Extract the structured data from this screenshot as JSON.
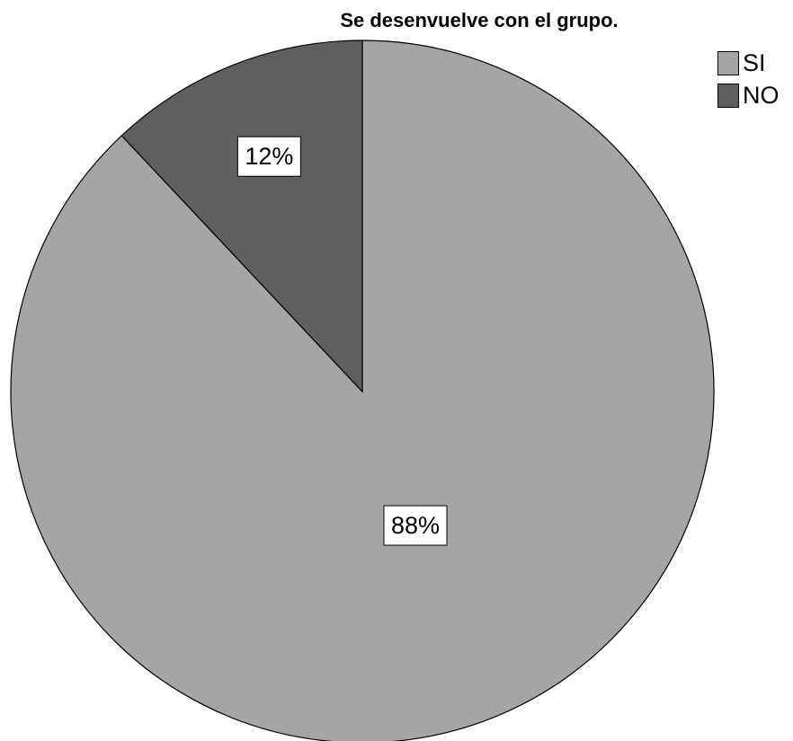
{
  "chart_data": {
    "type": "pie",
    "title": "Se desenvuelve con el grupo.",
    "slices": [
      {
        "label": "SI",
        "value": 88,
        "display": "88%",
        "color": "#a5a5a5"
      },
      {
        "label": "NO",
        "value": 12,
        "display": "12%",
        "color": "#5f5f5f"
      }
    ],
    "legend_position": "top-right",
    "start_angle": "12 o'clock",
    "direction": "clockwise"
  }
}
